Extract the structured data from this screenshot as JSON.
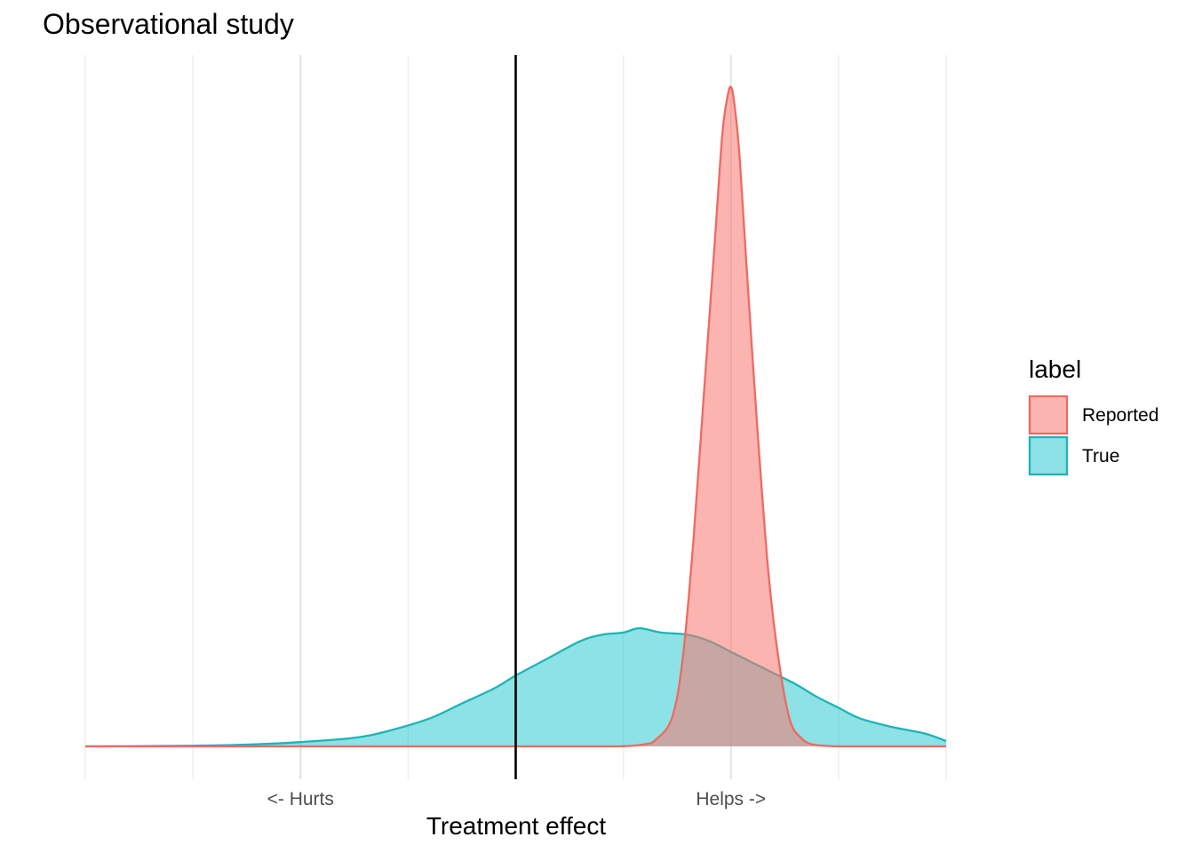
{
  "chart_data": {
    "type": "area",
    "title": "Observational study",
    "xlabel": "Treatment effect",
    "ylabel": "",
    "xlim": [
      -4,
      4
    ],
    "ylim": [
      0,
      3.2
    ],
    "x_ticks": [
      {
        "value": -2,
        "label": "<- Hurts"
      },
      {
        "value": 2,
        "label": "Helps ->"
      }
    ],
    "x_gridlines": [
      -4,
      -3,
      -2,
      -1,
      0,
      1,
      2,
      3,
      4
    ],
    "vline": 0,
    "grid": true,
    "legend": {
      "title": "label",
      "position": "right"
    },
    "series": [
      {
        "name": "True",
        "fill": "#00BFC4",
        "stroke": "#1FB3B8",
        "fill_opacity": 0.45,
        "x": [
          -4,
          -3.5,
          -3,
          -2.5,
          -2,
          -1.5,
          -1.2,
          -0.8,
          -0.5,
          -0.2,
          0,
          0.3,
          0.6,
          0.8,
          1,
          1.15,
          1.35,
          1.6,
          1.8,
          2,
          2.2,
          2.4,
          2.6,
          2.8,
          3,
          3.2,
          3.5,
          3.8,
          4
        ],
        "values": [
          0,
          0.001,
          0.003,
          0.008,
          0.02,
          0.04,
          0.07,
          0.13,
          0.2,
          0.27,
          0.33,
          0.41,
          0.49,
          0.52,
          0.53,
          0.55,
          0.53,
          0.52,
          0.49,
          0.44,
          0.39,
          0.34,
          0.29,
          0.23,
          0.18,
          0.13,
          0.09,
          0.06,
          0.025
        ]
      },
      {
        "name": "Reported",
        "fill": "#F8766D",
        "stroke": "#EE6A63",
        "fill_opacity": 0.55,
        "x": [
          -4,
          0.5,
          1,
          1.2,
          1.3,
          1.45,
          1.55,
          1.65,
          1.75,
          1.85,
          1.92,
          1.97,
          2.0,
          2.03,
          2.08,
          2.15,
          2.25,
          2.35,
          2.45,
          2.55,
          2.65,
          2.75,
          2.9,
          3.1,
          4
        ],
        "values": [
          0,
          0,
          0.001,
          0.01,
          0.03,
          0.13,
          0.4,
          0.95,
          1.65,
          2.35,
          2.85,
          3.03,
          3.07,
          3.0,
          2.75,
          2.2,
          1.45,
          0.8,
          0.38,
          0.12,
          0.04,
          0.01,
          0.002,
          0,
          0
        ]
      }
    ]
  }
}
